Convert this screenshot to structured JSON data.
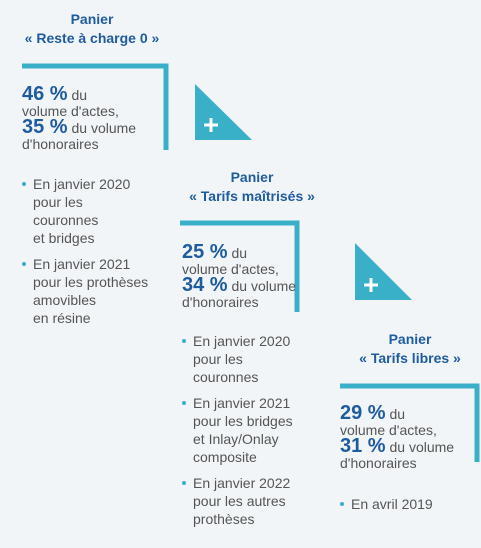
{
  "panels": [
    {
      "title": [
        "Panier",
        "« Reste à charge 0 »"
      ],
      "stats": [
        {
          "value": "46 %",
          "text": [
            "du",
            "volume d'actes,"
          ]
        },
        {
          "value": "35 %",
          "text": [
            "du volume",
            "d'honoraires"
          ]
        }
      ],
      "bullets": [
        [
          "En janvier 2020",
          "pour les",
          "couronnes",
          "et bridges"
        ],
        [
          "En janvier 2021",
          "pour les prothèses",
          "amovibles",
          "en résine"
        ]
      ]
    },
    {
      "title": [
        "Panier",
        "« Tarifs maîtrisés »"
      ],
      "stats": [
        {
          "value": "25 %",
          "text": [
            "du",
            "volume d'actes,"
          ]
        },
        {
          "value": "34 %",
          "text": [
            "du volume",
            "d'honoraires"
          ]
        }
      ],
      "bullets": [
        [
          "En janvier 2020",
          "pour les",
          "couronnes"
        ],
        [
          "En janvier 2021",
          "pour les bridges",
          "et Inlay/Onlay",
          "composite"
        ],
        [
          "En janvier 2022",
          "pour les autres",
          "prothèses"
        ]
      ]
    },
    {
      "title": [
        "Panier",
        "« Tarifs libres »"
      ],
      "stats": [
        {
          "value": "29 %",
          "text": [
            "du",
            "volume d'actes,"
          ]
        },
        {
          "value": "31 %",
          "text": [
            "du volume",
            "d'honoraires"
          ]
        }
      ],
      "bullets": [
        [
          "En avril 2019"
        ]
      ]
    }
  ]
}
